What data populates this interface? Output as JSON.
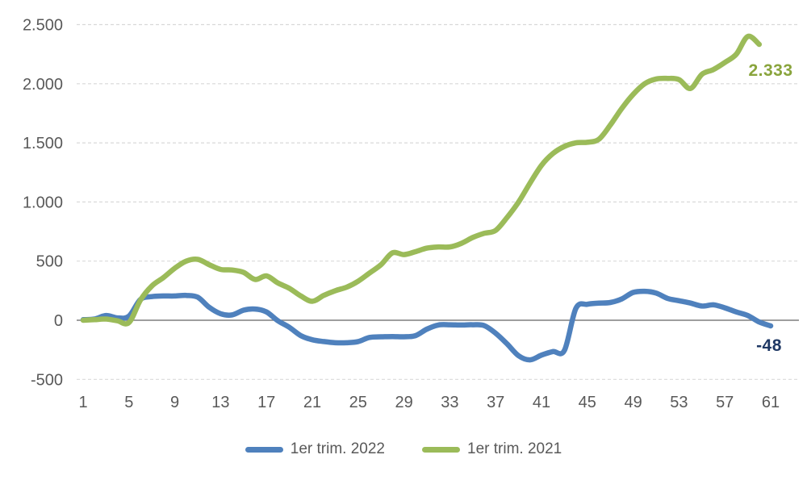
{
  "chart_data": {
    "type": "line",
    "title": "",
    "xlabel": "",
    "ylabel": "",
    "xlim": [
      1,
      61
    ],
    "ylim": [
      -500,
      2500
    ],
    "grid": {
      "horizontal": true,
      "style": "dashed",
      "gridline_color": "#D9D9D9",
      "zero_line_color": "#7F7F7F"
    },
    "axis_text_color": "#595959",
    "legend_position": "bottom",
    "x_ticks": [
      1,
      5,
      9,
      13,
      17,
      21,
      25,
      29,
      33,
      37,
      41,
      45,
      49,
      53,
      57,
      61
    ],
    "y_ticks": [
      {
        "value": 2500,
        "label": "2.500"
      },
      {
        "value": 2000,
        "label": "2.000"
      },
      {
        "value": 1500,
        "label": "1.500"
      },
      {
        "value": 1000,
        "label": "1.000"
      },
      {
        "value": 500,
        "label": "500"
      },
      {
        "value": 0,
        "label": "0"
      },
      {
        "value": -500,
        "label": "-500"
      }
    ],
    "series": [
      {
        "name": "1er trim. 2022",
        "color": "#4F81BD",
        "x_start": 1,
        "end_label": "-48",
        "end_label_color": "#1F3864",
        "values": [
          5,
          10,
          40,
          20,
          35,
          175,
          200,
          205,
          205,
          210,
          195,
          110,
          55,
          45,
          85,
          95,
          70,
          -5,
          -60,
          -130,
          -165,
          -180,
          -190,
          -190,
          -180,
          -145,
          -140,
          -138,
          -140,
          -130,
          -75,
          -40,
          -38,
          -40,
          -38,
          -45,
          -110,
          -200,
          -300,
          -335,
          -295,
          -265,
          -255,
          100,
          135,
          145,
          150,
          180,
          235,
          245,
          230,
          185,
          165,
          145,
          120,
          130,
          105,
          70,
          40,
          -15,
          -48
        ]
      },
      {
        "name": "1er trim. 2021",
        "color": "#9BBB59",
        "x_start": 1,
        "end_label": "2.333",
        "end_label_color": "#89A43C",
        "values": [
          0,
          5,
          10,
          -5,
          -20,
          170,
          290,
          360,
          440,
          500,
          515,
          470,
          430,
          425,
          405,
          345,
          375,
          315,
          270,
          205,
          160,
          210,
          250,
          280,
          330,
          400,
          470,
          570,
          555,
          580,
          610,
          620,
          620,
          650,
          700,
          735,
          760,
          870,
          1000,
          1160,
          1310,
          1410,
          1470,
          1500,
          1505,
          1530,
          1650,
          1790,
          1910,
          2000,
          2040,
          2045,
          2035,
          1960,
          2080,
          2120,
          2180,
          2250,
          2400,
          2333
        ]
      }
    ]
  }
}
